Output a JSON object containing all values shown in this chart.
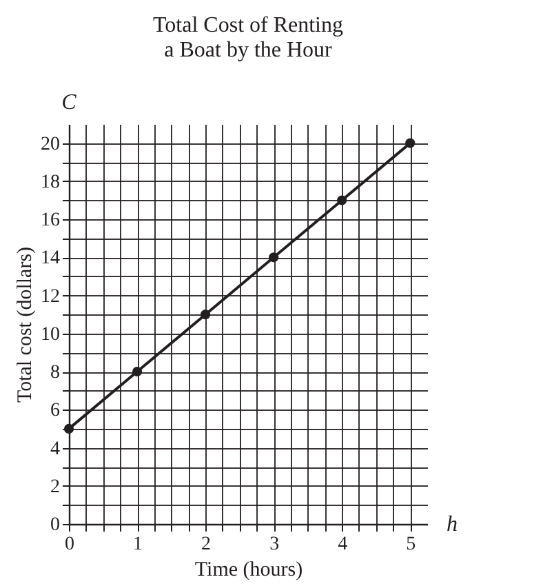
{
  "chart_data": {
    "type": "line",
    "title": [
      "Total Cost of Renting",
      "a Boat by the Hour"
    ],
    "xlabel": "Time (hours)",
    "ylabel": "Total cost (dollars)",
    "x": [
      0,
      1,
      2,
      3,
      4,
      5
    ],
    "series": [
      {
        "color": "#231f20",
        "values": [
          5,
          8,
          11,
          14,
          17,
          20
        ]
      }
    ],
    "marker": "circle",
    "line_style": "solid",
    "grid": true,
    "xlim": [
      0,
      5.25
    ],
    "ylim": [
      0,
      21
    ],
    "xticks": [
      0,
      {
        "value": 0.25,
        "label": null
      },
      {
        "value": 0.5,
        "label": null
      },
      {
        "value": 0.75,
        "label": null
      },
      1,
      {
        "value": 1.25,
        "label": null
      },
      {
        "value": 1.5,
        "label": null
      },
      {
        "value": 1.75,
        "label": null
      },
      2,
      {
        "value": 2.25,
        "label": null
      },
      {
        "value": 2.5,
        "label": null
      },
      {
        "value": 2.75,
        "label": null
      },
      3,
      {
        "value": 3.25,
        "label": null
      },
      {
        "value": 3.5,
        "label": null
      },
      {
        "value": 3.75,
        "label": null
      },
      4,
      {
        "value": 4.25,
        "label": null
      },
      {
        "value": 4.5,
        "label": null
      },
      {
        "value": 4.75,
        "label": null
      },
      5
    ],
    "yticks": [
      0,
      {
        "value": 1,
        "label": null
      },
      2,
      {
        "value": 3,
        "label": null
      },
      4,
      {
        "value": 5,
        "label": null
      },
      6,
      {
        "value": 7,
        "label": null
      },
      8,
      {
        "value": 9,
        "label": null
      },
      10,
      {
        "value": 11,
        "label": null
      },
      12,
      {
        "value": 13,
        "label": null
      },
      14,
      {
        "value": 15,
        "label": null
      },
      16,
      {
        "value": 17,
        "label": null
      },
      18,
      {
        "value": 19,
        "label": null
      },
      20
    ],
    "annotations": [
      "C",
      "h"
    ]
  }
}
